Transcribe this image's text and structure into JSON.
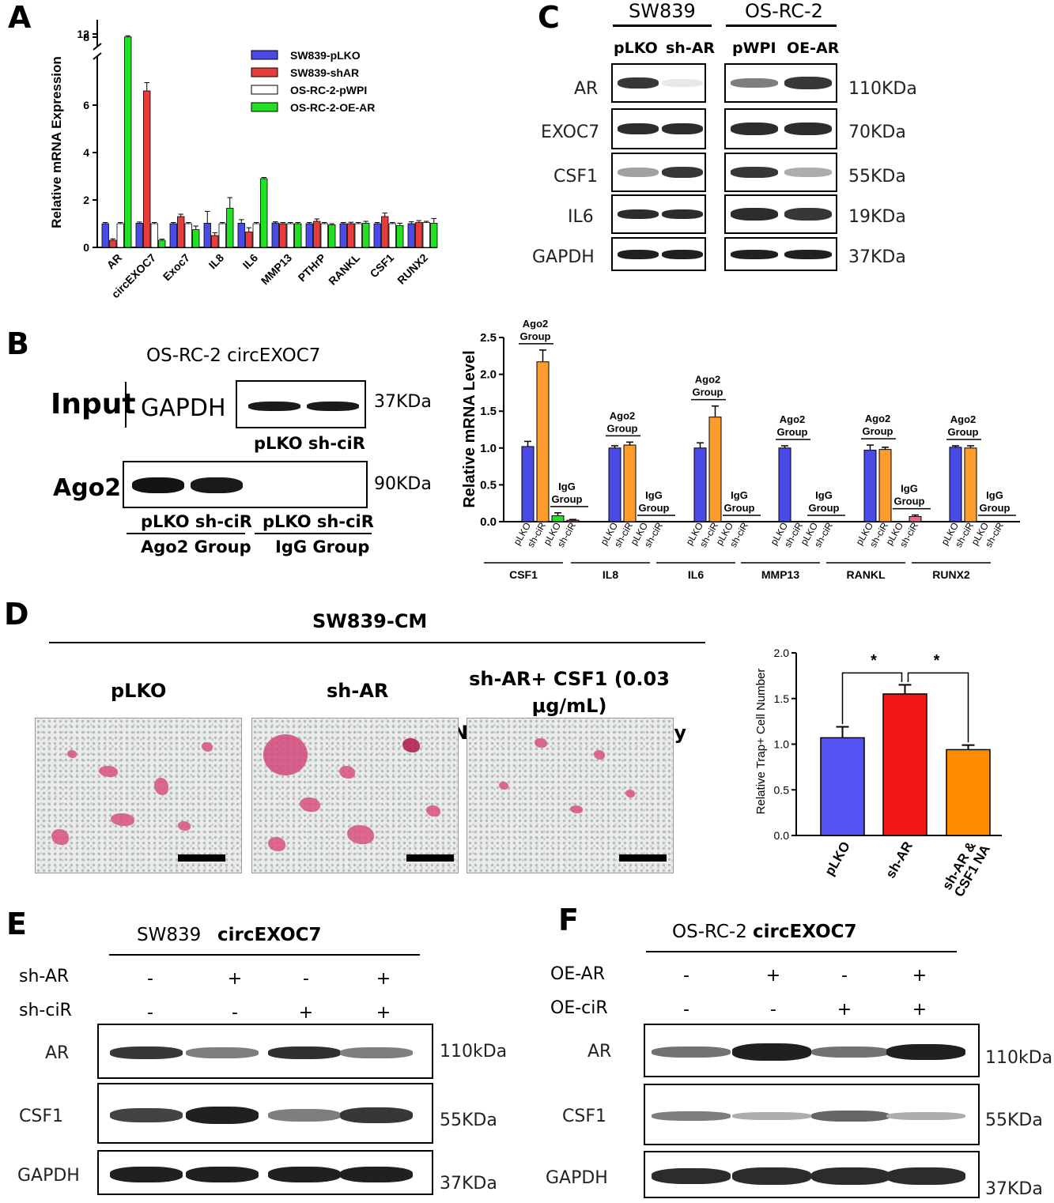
{
  "panelA": {
    "label": "A",
    "chart_data": {
      "type": "bar",
      "ylabel": "Relative mRNA Expression",
      "yticks": [
        "0",
        "2",
        "4",
        "6",
        "8",
        "12"
      ],
      "ylim": [
        0,
        12
      ],
      "broken_axis": true,
      "categories": [
        "AR",
        "circEXOC7",
        "Exoc7",
        "IL8",
        "IL6",
        "MMP13",
        "PTHrP",
        "RANKL",
        "CSF1",
        "RUNX2"
      ],
      "series": [
        {
          "name": "SW839-pLKO",
          "color": "#4a4ae6",
          "values": [
            1.0,
            1.02,
            1.0,
            1.02,
            1.02,
            1.03,
            1.0,
            1.0,
            1.0,
            1.0
          ]
        },
        {
          "name": "SW839-shAR",
          "color": "#e83c3c",
          "values": [
            0.3,
            6.6,
            1.3,
            0.5,
            0.65,
            1.0,
            1.1,
            1.0,
            1.3,
            1.05
          ]
        },
        {
          "name": "OS-RC-2-pWPI",
          "color": "#ffffff",
          "values": [
            1.0,
            1.0,
            1.0,
            1.0,
            1.0,
            1.0,
            1.0,
            1.0,
            1.0,
            1.05
          ]
        },
        {
          "name": "OS-RC-2-OE-AR",
          "color": "#22e022",
          "values": [
            11.5,
            0.3,
            0.75,
            1.65,
            2.9,
            1.0,
            0.95,
            1.02,
            0.92,
            1.02
          ]
        }
      ],
      "errors": [
        [
          0.05,
          0.05,
          0.05,
          0.5,
          0.15,
          0.05,
          0.05,
          0.05,
          0.05,
          0.08
        ],
        [
          0.06,
          0.35,
          0.1,
          0.12,
          0.18,
          0.05,
          0.1,
          0.06,
          0.15,
          0.08
        ],
        [
          0.05,
          0.05,
          0.05,
          0.05,
          0.05,
          0.05,
          0.05,
          0.05,
          0.05,
          0.05
        ],
        [
          0.2,
          0.05,
          0.15,
          0.45,
          0.05,
          0.05,
          0.05,
          0.08,
          0.1,
          0.2
        ]
      ]
    }
  },
  "panelB": {
    "label": "B",
    "title": "OS-RC-2  circEXOC7",
    "input_label": "Input",
    "gapdh_label": "GAPDH",
    "ago2_label": "Ago2",
    "kda_gapdh": "37KDa",
    "kda_ago2": "90KDa",
    "lanes_input": "pLKO sh-ciR",
    "lanes_ago2": "pLKO sh-ciR",
    "lanes_igg": "pLKO sh-ciR",
    "group_ago2": "Ago2 Group",
    "group_igg": "IgG Group",
    "chart_data": {
      "type": "bar",
      "ylabel": "Relative mRNA Level",
      "ylim": [
        0,
        2.5
      ],
      "yticks": [
        "0.0",
        "0.5",
        "1.0",
        "1.5",
        "2.0",
        "2.5"
      ],
      "genes": [
        "CSF1",
        "IL8",
        "IL6",
        "MMP13",
        "RANKL",
        "RUNX2"
      ],
      "bar_labels": [
        "pLKO",
        "sh-ciR",
        "pLKO",
        "sh-ciR"
      ],
      "group_labels": [
        "Ago2 Group",
        "IgG Group"
      ],
      "colors": [
        "#4a4ae6",
        "#ff9c2e",
        "#22e022",
        "#e86a8a"
      ],
      "values": [
        [
          1.02,
          2.17,
          0.08,
          0.02
        ],
        [
          1.0,
          1.04,
          0.0,
          0.0
        ],
        [
          1.0,
          1.42,
          0.0,
          0.0
        ],
        [
          1.0,
          0.0,
          0.0,
          0.0
        ],
        [
          0.97,
          0.98,
          0.0,
          0.07
        ],
        [
          1.01,
          1.0,
          0.0,
          0.0
        ]
      ],
      "errors": [
        [
          0.07,
          0.16,
          0.04,
          0.01
        ],
        [
          0.03,
          0.04,
          0,
          0
        ],
        [
          0.07,
          0.15,
          0,
          0
        ],
        [
          0.03,
          0,
          0,
          0
        ],
        [
          0.07,
          0.03,
          0,
          0.02
        ],
        [
          0.02,
          0.03,
          0,
          0
        ]
      ]
    }
  },
  "panelC": {
    "label": "C",
    "cell_left": "SW839",
    "cell_right": "OS-RC-2",
    "lanes": [
      "pLKO",
      "sh-AR",
      "pWPI",
      "OE-AR"
    ],
    "proteins": [
      "AR",
      "EXOC7",
      "CSF1",
      "IL6",
      "GAPDH"
    ],
    "kda": [
      "110KDa",
      "70KDa",
      "55KDa",
      "19KDa",
      "37KDa"
    ]
  },
  "panelD": {
    "label": "D",
    "title": "SW839-CM",
    "image_labels": [
      "pLKO",
      "sh-AR",
      "sh-AR+ CSF1 (0.03 μg/mL)\nNeutralizing Antibody"
    ],
    "chart_data": {
      "type": "bar",
      "ylabel": "Relative Trap+ Cell Number",
      "ylim": [
        0,
        2.0
      ],
      "yticks": [
        "0.0",
        "0.5",
        "1.0",
        "1.5",
        "2.0"
      ],
      "categories": [
        "pLKO",
        "sh-AR",
        "sh-AR &\nCSF1 NA"
      ],
      "values": [
        1.07,
        1.55,
        0.94
      ],
      "errors": [
        0.12,
        0.1,
        0.05
      ],
      "colors": [
        "#5555f5",
        "#f21616",
        "#ff8c00"
      ],
      "significance": [
        "*",
        "*"
      ]
    }
  },
  "panelE": {
    "label": "E",
    "title_cell": "SW839",
    "title_circ": "circEXOC7",
    "row_labels": [
      "sh-AR",
      "sh-ciR"
    ],
    "signs": [
      [
        "-",
        "+",
        "-",
        "+"
      ],
      [
        "-",
        "-",
        "+",
        "+"
      ]
    ],
    "proteins": [
      "AR",
      "CSF1",
      "GAPDH"
    ],
    "kda": [
      "110kDa",
      "55KDa",
      "37KDa"
    ]
  },
  "panelF": {
    "label": "F",
    "title_cell": "OS-RC-2",
    "title_circ": "circEXOC7",
    "row_labels": [
      "OE-AR",
      "OE-ciR"
    ],
    "signs": [
      [
        "-",
        "+",
        "-",
        "+"
      ],
      [
        "-",
        "-",
        "+",
        "+"
      ]
    ],
    "proteins": [
      "AR",
      "CSF1",
      "GAPDH"
    ],
    "kda": [
      "110kDa",
      "55KDa",
      "37KDa"
    ]
  }
}
